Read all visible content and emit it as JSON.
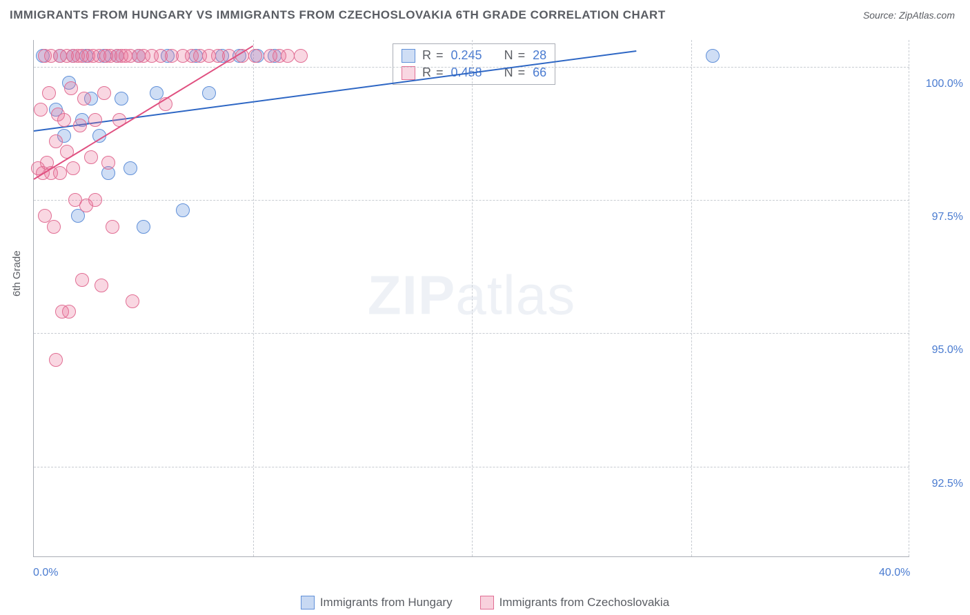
{
  "title": "IMMIGRANTS FROM HUNGARY VS IMMIGRANTS FROM CZECHOSLOVAKIA 6TH GRADE CORRELATION CHART",
  "source": "Source: ZipAtlas.com",
  "y_axis_title": "6th Grade",
  "watermark_zip": "ZIP",
  "watermark_atlas": "atlas",
  "chart": {
    "type": "scatter",
    "plot_bg": "#ffffff",
    "grid_color": "#c7cbd1",
    "axis_color": "#a9adb5",
    "xlim": [
      0,
      40
    ],
    "ylim": [
      90.8,
      100.5
    ],
    "x_ticks": [
      0,
      40
    ],
    "x_tick_labels": [
      "0.0%",
      "40.0%"
    ],
    "x_minor_ticks": [
      10,
      20,
      30
    ],
    "y_ticks": [
      92.5,
      95.0,
      97.5,
      100.0
    ],
    "y_tick_labels": [
      "92.5%",
      "95.0%",
      "97.5%",
      "100.0%"
    ],
    "series": [
      {
        "name": "Immigrants from Hungary",
        "color_fill": "rgba(97,147,221,0.30)",
        "color_stroke": "#5f8fd8",
        "trend_color": "#2d66c4",
        "marker_r": 10,
        "R": 0.245,
        "N": 28,
        "points": [
          [
            0.4,
            100.2
          ],
          [
            1.0,
            99.2
          ],
          [
            1.2,
            100.2
          ],
          [
            1.4,
            98.7
          ],
          [
            1.6,
            99.7
          ],
          [
            1.8,
            100.2
          ],
          [
            2.0,
            97.2
          ],
          [
            2.2,
            99.0
          ],
          [
            2.4,
            100.2
          ],
          [
            2.6,
            99.4
          ],
          [
            3.0,
            98.7
          ],
          [
            3.2,
            100.2
          ],
          [
            3.4,
            98.0
          ],
          [
            3.8,
            100.2
          ],
          [
            4.0,
            99.4
          ],
          [
            4.4,
            98.1
          ],
          [
            4.8,
            100.2
          ],
          [
            5.0,
            97.0
          ],
          [
            5.6,
            99.5
          ],
          [
            6.1,
            100.2
          ],
          [
            6.8,
            97.3
          ],
          [
            7.4,
            100.2
          ],
          [
            8.0,
            99.5
          ],
          [
            8.6,
            100.2
          ],
          [
            9.4,
            100.2
          ],
          [
            10.2,
            100.2
          ],
          [
            11.0,
            100.2
          ],
          [
            31.0,
            100.2
          ]
        ],
        "trend": {
          "x1": 0.0,
          "y1": 98.8,
          "x2": 27.5,
          "y2": 100.3
        }
      },
      {
        "name": "Immigrants from Czechoslovakia",
        "color_fill": "rgba(232,112,150,0.28)",
        "color_stroke": "#e16d93",
        "trend_color": "#e05080",
        "marker_r": 10,
        "R": 0.458,
        "N": 66,
        "points": [
          [
            0.2,
            98.1
          ],
          [
            0.3,
            99.2
          ],
          [
            0.4,
            98.0
          ],
          [
            0.5,
            97.2
          ],
          [
            0.5,
            100.2
          ],
          [
            0.6,
            98.2
          ],
          [
            0.7,
            99.5
          ],
          [
            0.8,
            98.0
          ],
          [
            0.8,
            100.2
          ],
          [
            0.9,
            97.0
          ],
          [
            1.0,
            98.6
          ],
          [
            1.0,
            94.5
          ],
          [
            1.1,
            99.1
          ],
          [
            1.2,
            98.0
          ],
          [
            1.2,
            100.2
          ],
          [
            1.3,
            95.4
          ],
          [
            1.4,
            99.0
          ],
          [
            1.5,
            98.4
          ],
          [
            1.5,
            100.2
          ],
          [
            1.6,
            95.4
          ],
          [
            1.7,
            99.6
          ],
          [
            1.8,
            98.1
          ],
          [
            1.8,
            100.2
          ],
          [
            1.9,
            97.5
          ],
          [
            2.0,
            100.2
          ],
          [
            2.1,
            98.9
          ],
          [
            2.2,
            100.2
          ],
          [
            2.2,
            96.0
          ],
          [
            2.3,
            99.4
          ],
          [
            2.4,
            97.4
          ],
          [
            2.5,
            100.2
          ],
          [
            2.6,
            98.3
          ],
          [
            2.7,
            100.2
          ],
          [
            2.8,
            99.0
          ],
          [
            2.8,
            97.5
          ],
          [
            3.0,
            100.2
          ],
          [
            3.1,
            95.9
          ],
          [
            3.2,
            99.5
          ],
          [
            3.3,
            100.2
          ],
          [
            3.4,
            98.2
          ],
          [
            3.5,
            100.2
          ],
          [
            3.6,
            97.0
          ],
          [
            3.8,
            100.2
          ],
          [
            3.9,
            99.0
          ],
          [
            4.0,
            100.2
          ],
          [
            4.2,
            100.2
          ],
          [
            4.4,
            100.2
          ],
          [
            4.5,
            95.6
          ],
          [
            4.8,
            100.2
          ],
          [
            5.0,
            100.2
          ],
          [
            5.4,
            100.2
          ],
          [
            5.8,
            100.2
          ],
          [
            6.0,
            99.3
          ],
          [
            6.3,
            100.2
          ],
          [
            6.8,
            100.2
          ],
          [
            7.2,
            100.2
          ],
          [
            7.6,
            100.2
          ],
          [
            8.0,
            100.2
          ],
          [
            8.4,
            100.2
          ],
          [
            8.9,
            100.2
          ],
          [
            9.5,
            100.2
          ],
          [
            10.1,
            100.2
          ],
          [
            10.8,
            100.2
          ],
          [
            11.2,
            100.2
          ],
          [
            11.6,
            100.2
          ],
          [
            12.2,
            100.2
          ]
        ],
        "trend": {
          "x1": 0.0,
          "y1": 97.9,
          "x2": 10.0,
          "y2": 100.4
        }
      }
    ]
  },
  "legend_top": {
    "r_label": "R =",
    "n_label": "N ="
  },
  "legend_bottom": [
    {
      "label": "Immigrants from Hungary",
      "fill": "rgba(97,147,221,0.35)",
      "stroke": "#5f8fd8"
    },
    {
      "label": "Immigrants from Czechoslovakia",
      "fill": "rgba(232,112,150,0.32)",
      "stroke": "#e16d93"
    }
  ]
}
